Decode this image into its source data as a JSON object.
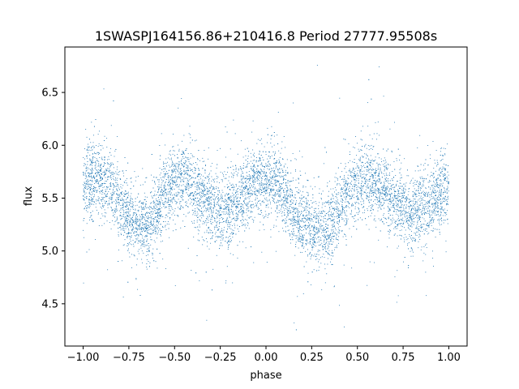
{
  "chart_data": {
    "type": "scatter",
    "title": "1SWASPJ164156.86+210416.8 Period 27777.95508s",
    "xlabel": "phase",
    "ylabel": "flux",
    "xlim": [
      -1.1,
      1.1
    ],
    "ylim": [
      4.1,
      6.93
    ],
    "x_ticks": [
      -1.0,
      -0.75,
      -0.5,
      -0.25,
      0.0,
      0.25,
      0.5,
      0.75,
      1.0
    ],
    "x_tick_labels": [
      "−1.00",
      "−0.75",
      "−0.50",
      "−0.25",
      "0.00",
      "0.25",
      "0.50",
      "0.75",
      "1.00"
    ],
    "y_ticks": [
      4.5,
      5.0,
      5.5,
      6.0,
      6.5
    ],
    "y_tick_labels": [
      "4.5",
      "5.0",
      "5.5",
      "6.0",
      "6.5"
    ],
    "grid": false,
    "legend": "none",
    "marker_color": "#1f77b4",
    "series": [
      {
        "phase_range": [
          -1.0,
          1.0
        ],
        "n_points": 8000,
        "mean_flux": 5.45,
        "profile_points": {
          "phase": [
            -1.0,
            -0.95,
            -0.9,
            -0.85,
            -0.8,
            -0.75,
            -0.7,
            -0.65,
            -0.6,
            -0.55,
            -0.5,
            -0.45,
            -0.4,
            -0.35,
            -0.3,
            -0.25,
            -0.2,
            -0.15,
            -0.1,
            -0.05,
            0.0,
            0.05,
            0.1,
            0.15,
            0.2,
            0.25,
            0.3,
            0.35,
            0.4,
            0.45,
            0.5,
            0.55,
            0.6,
            0.65,
            0.7,
            0.75,
            0.8,
            0.85,
            0.9,
            0.95,
            1.0
          ],
          "flux": [
            5.62,
            5.67,
            5.68,
            5.62,
            5.48,
            5.32,
            5.23,
            5.24,
            5.39,
            5.56,
            5.66,
            5.69,
            5.62,
            5.5,
            5.41,
            5.38,
            5.39,
            5.45,
            5.56,
            5.66,
            5.69,
            5.65,
            5.52,
            5.38,
            5.27,
            5.22,
            5.21,
            5.25,
            5.38,
            5.54,
            5.64,
            5.69,
            5.65,
            5.56,
            5.46,
            5.4,
            5.38,
            5.39,
            5.45,
            5.54,
            5.62
          ]
        },
        "scatter_sigma": 0.17
      }
    ]
  }
}
